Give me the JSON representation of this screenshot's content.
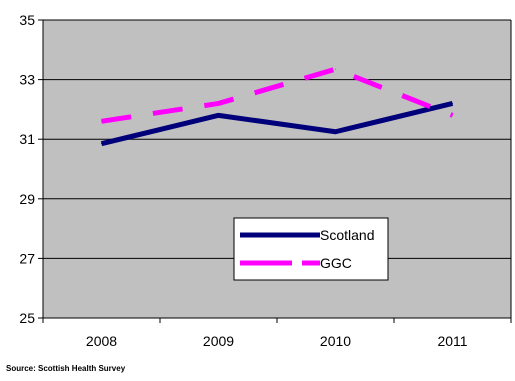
{
  "chart_data": {
    "type": "line",
    "categories": [
      "2008",
      "2009",
      "2010",
      "2011"
    ],
    "series": [
      {
        "name": "Scotland",
        "values": [
          30.85,
          31.8,
          31.25,
          32.2
        ],
        "color": "#00007a",
        "dash": "solid"
      },
      {
        "name": "GGC",
        "values": [
          31.6,
          32.2,
          33.35,
          31.8
        ],
        "color": "#ff00ff",
        "dash": "dashed"
      }
    ],
    "ylim": [
      25,
      35
    ],
    "yticks": [
      "25",
      "27",
      "29",
      "31",
      "33",
      "35"
    ],
    "grid": true,
    "plot_background": "#c0c0c0",
    "legend_position": "lower-right"
  },
  "footer": {
    "source": "Source: Scottish Health Survey"
  }
}
